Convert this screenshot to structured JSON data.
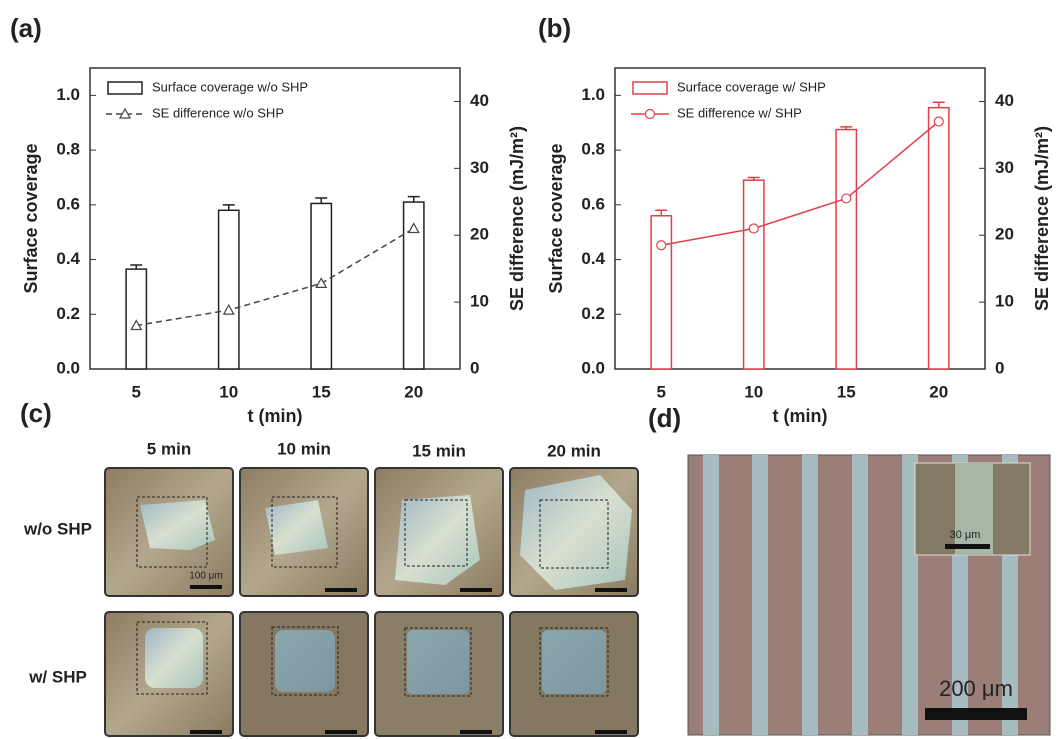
{
  "panel_labels": [
    "(a)",
    "(b)",
    "(c)",
    "(d)"
  ],
  "chart_data": [
    {
      "type": "bar",
      "xlabel": "t (min)",
      "ylabel": "Surface coverage",
      "y2label": "SE difference (mJ/m²)",
      "categories": [
        "5",
        "10",
        "15",
        "20"
      ],
      "ylim": [
        0,
        1.1
      ],
      "yticks": [
        {
          "value": 0,
          "label": "0.0"
        },
        0.2,
        0.4,
        0.6,
        0.8,
        {
          "value": 1,
          "label": "1.0"
        }
      ],
      "y2lim": [
        0,
        45
      ],
      "y2ticks": [
        0,
        10,
        20,
        30,
        40
      ],
      "series": [
        {
          "name": "Surface coverage w/o SHP",
          "color": "#222222",
          "type": "bar",
          "values": [
            0.365,
            0.58,
            0.605,
            0.61
          ],
          "errors": [
            0.015,
            0.02,
            0.02,
            0.02
          ]
        },
        {
          "name": "SE difference w/o SHP",
          "color": "#444444",
          "type": "line",
          "axis": "y2",
          "marker": "triangle",
          "dashed": true,
          "values": [
            6.5,
            8.8,
            12.8,
            21
          ]
        }
      ]
    },
    {
      "type": "bar",
      "xlabel": "t (min)",
      "ylabel": "Surface coverage",
      "y2label": "SE difference (mJ/m²)",
      "categories": [
        "5",
        "10",
        "15",
        "20"
      ],
      "ylim": [
        0,
        1.1
      ],
      "yticks": [
        {
          "value": 0,
          "label": "0.0"
        },
        0.2,
        0.4,
        0.6,
        0.8,
        {
          "value": 1,
          "label": "1.0"
        }
      ],
      "y2lim": [
        0,
        45
      ],
      "y2ticks": [
        0,
        10,
        20,
        30,
        40
      ],
      "series": [
        {
          "name": "Surface coverage w/ SHP",
          "color": "#e0404a",
          "type": "bar",
          "values": [
            0.56,
            0.69,
            0.875,
            0.955
          ],
          "errors": [
            0.02,
            0.01,
            0.01,
            0.02
          ]
        },
        {
          "name": "SE difference w/ SHP",
          "color": "#e0404a",
          "type": "line",
          "axis": "y2",
          "marker": "circle",
          "dashed": false,
          "values": [
            18.5,
            21,
            25.5,
            37
          ]
        }
      ]
    }
  ],
  "micrographs": {
    "columns": [
      "5 min",
      "10 min",
      "15 min",
      "20 min"
    ],
    "rows": [
      "w/o SHP",
      "w/ SHP"
    ],
    "scale_bar": "100 μm"
  },
  "stripes": {
    "scale_bar": "200 μm",
    "inset_scale_bar": "30 μm"
  }
}
